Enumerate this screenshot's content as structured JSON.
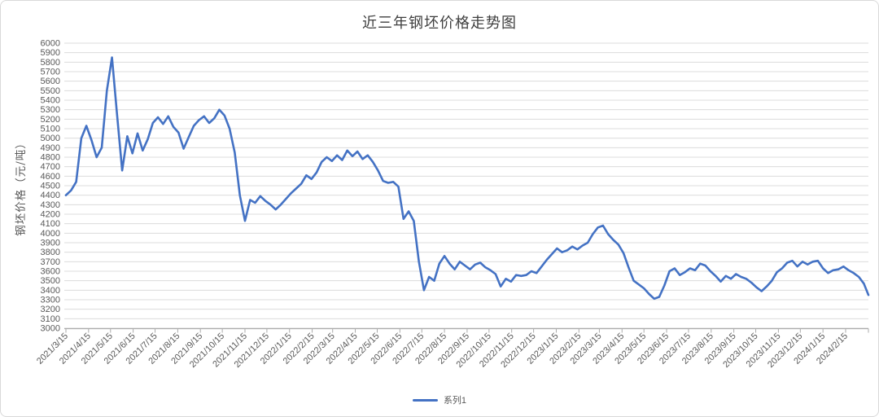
{
  "style": {
    "background": "#ffffff",
    "frame_border": "#d9d9d9",
    "series_blue": "#4472C4",
    "gridline": "#DCDCDC",
    "axis_line": "#ABABAB",
    "tick_text": "#595959",
    "title_text": "#3f3f3f"
  },
  "chart_data": {
    "type": "line",
    "title": "近三年钢坯价格走势图",
    "legend_position": "bottom",
    "grid": true,
    "y_axis": {
      "title": "钢坯价格（元/吨）",
      "min": 3000,
      "max": 6000,
      "step": 100
    },
    "x_axis": {
      "tick_labels": [
        "2021/3/15",
        "2021/4/15",
        "2021/5/15",
        "2021/6/15",
        "2021/7/15",
        "2021/8/15",
        "2021/9/15",
        "2021/10/15",
        "2021/11/15",
        "2021/12/15",
        "2022/1/15",
        "2022/2/15",
        "2022/3/15",
        "2022/4/15",
        "2022/5/15",
        "2022/6/15",
        "2022/7/15",
        "2022/8/15",
        "2022/9/15",
        "2022/10/15",
        "2022/11/15",
        "2022/12/15",
        "2023/1/15",
        "2023/2/15",
        "2023/3/15",
        "2023/4/15",
        "2023/5/15",
        "2023/6/15",
        "2023/7/15",
        "2023/8/15",
        "2023/9/15",
        "2023/10/15",
        "2023/11/15",
        "2023/12/15",
        "2024/1/15",
        "2024/2/15"
      ]
    },
    "series": [
      {
        "name": "系列1",
        "color": "#4472C4",
        "start_date": "2021/3/15",
        "interval_days": 7,
        "values": [
          4400,
          4450,
          4540,
          5000,
          5130,
          4980,
          4800,
          4900,
          5500,
          5850,
          5250,
          4660,
          5020,
          4840,
          5050,
          4870,
          4990,
          5160,
          5220,
          5150,
          5230,
          5120,
          5060,
          4890,
          5010,
          5130,
          5190,
          5230,
          5160,
          5210,
          5300,
          5240,
          5100,
          4850,
          4400,
          4130,
          4350,
          4320,
          4390,
          4340,
          4300,
          4250,
          4300,
          4360,
          4420,
          4470,
          4520,
          4610,
          4570,
          4640,
          4750,
          4800,
          4760,
          4820,
          4770,
          4870,
          4810,
          4860,
          4780,
          4820,
          4750,
          4660,
          4550,
          4530,
          4540,
          4490,
          4150,
          4230,
          4130,
          3700,
          3400,
          3540,
          3500,
          3680,
          3760,
          3680,
          3620,
          3700,
          3660,
          3620,
          3670,
          3690,
          3640,
          3610,
          3570,
          3440,
          3520,
          3490,
          3560,
          3550,
          3560,
          3600,
          3580,
          3650,
          3720,
          3780,
          3840,
          3800,
          3820,
          3860,
          3830,
          3870,
          3900,
          3990,
          4060,
          4080,
          3990,
          3930,
          3880,
          3790,
          3640,
          3500,
          3460,
          3420,
          3360,
          3310,
          3330,
          3450,
          3600,
          3630,
          3560,
          3590,
          3630,
          3610,
          3680,
          3660,
          3600,
          3550,
          3490,
          3550,
          3520,
          3570,
          3540,
          3520,
          3480,
          3430,
          3390,
          3440,
          3500,
          3590,
          3630,
          3690,
          3710,
          3650,
          3700,
          3670,
          3700,
          3710,
          3630,
          3580,
          3610,
          3620,
          3650,
          3610,
          3580,
          3540,
          3470,
          3350
        ]
      }
    ]
  }
}
